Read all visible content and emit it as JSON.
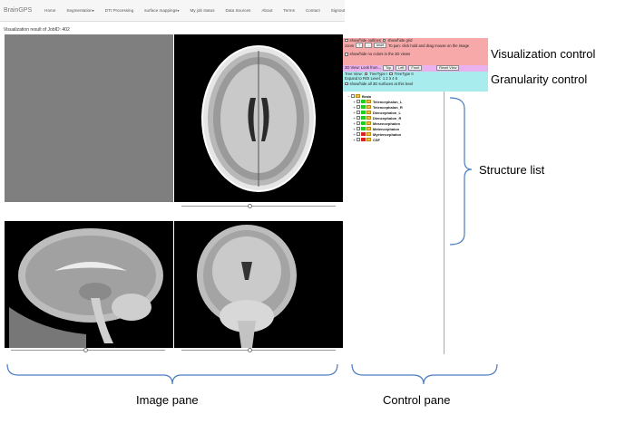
{
  "nav": {
    "brand": "BrainGPS",
    "items": [
      {
        "label": "Home"
      },
      {
        "label": "Segmentation",
        "has_caret": true
      },
      {
        "label": "DTI Processing"
      },
      {
        "label": "surface mappings",
        "has_caret": true
      },
      {
        "label": "My job status"
      },
      {
        "label": "Data Sources"
      },
      {
        "label": "About"
      },
      {
        "label": "Terms"
      },
      {
        "label": "Contact"
      },
      {
        "label": "Signout"
      }
    ]
  },
  "visualization_title": "Visualization result of JobID: 402",
  "controls": {
    "show_outlines": "show/hide outlines",
    "show_grid": "show/hide grid",
    "zoom_label": "zoom",
    "zoom_plus": "+",
    "zoom_minus": "-",
    "reset": "reset",
    "pan_hint": "To pan: click hold and drag mouse on the image",
    "show_no_colors": "show/hide no colors in the 2D views",
    "view_3d_label": "3D View: Look from...",
    "view_top": "Top",
    "view_left": "Left",
    "view_front": "Front",
    "reset_view": "Reset View",
    "tree_view": "Tree View:",
    "tree_type_1": "TreeType I",
    "tree_type_2": "TreeType II",
    "expand_roi": "Expand to ROI Level:",
    "roi_levels": "1 2 3 4 5",
    "show_3d_surfaces": "show/hide all 3D surfaces at this level"
  },
  "structures": [
    {
      "name": "Brain",
      "color": "",
      "root": true
    },
    {
      "name": "Telencephalon_L",
      "color": "#22cc22"
    },
    {
      "name": "Telencephalon_R",
      "color": "#22cc22"
    },
    {
      "name": "Diencephalon_L",
      "color": "#22cc22"
    },
    {
      "name": "Diencephalon_R",
      "color": "#22cc22"
    },
    {
      "name": "Mesencephalon",
      "color": "#22cc22"
    },
    {
      "name": "Metencephalon",
      "color": "#22cc22"
    },
    {
      "name": "Myelencephalon",
      "color": "#dd2222"
    },
    {
      "name": "CSF",
      "color": "#dd2222"
    }
  ],
  "annotations": {
    "visualization_control": "Visualization control",
    "granularity_control": "Granularity control",
    "structure_list": "Structure list",
    "image_pane": "Image pane",
    "control_pane": "Control pane"
  }
}
